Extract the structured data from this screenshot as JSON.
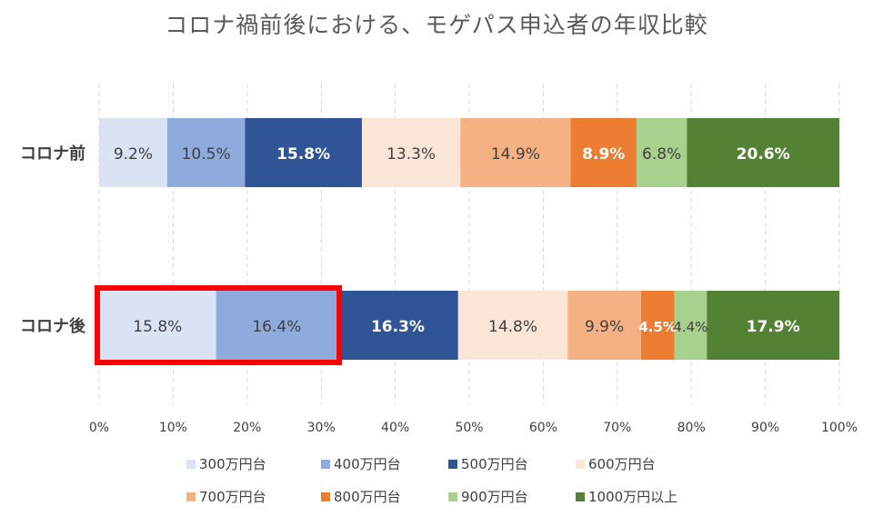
{
  "chart_data": {
    "type": "bar",
    "orientation": "horizontal",
    "stacked": "percent",
    "title": "コロナ禍前後における、モゲパス申込者の年収比較",
    "categories": [
      "コロナ前",
      "コロナ後"
    ],
    "series": [
      {
        "name": "300万円台",
        "color": "#dae3f3",
        "values": [
          9.2,
          15.8
        ],
        "labels": [
          "9.2%",
          "15.8%"
        ]
      },
      {
        "name": "400万円台",
        "color": "#8faadc",
        "values": [
          10.5,
          16.4
        ],
        "labels": [
          "10.5%",
          "16.4%"
        ]
      },
      {
        "name": "500万円台",
        "color": "#2f5597",
        "values": [
          15.8,
          16.3
        ],
        "labels": [
          "15.8%",
          "16.3%"
        ]
      },
      {
        "name": "600万円台",
        "color": "#fbe5d6",
        "values": [
          13.3,
          14.8
        ],
        "labels": [
          "13.3%",
          "14.8%"
        ]
      },
      {
        "name": "700万円台",
        "color": "#f4b183",
        "values": [
          14.9,
          9.9
        ],
        "labels": [
          "14.9%",
          "9.9%"
        ]
      },
      {
        "name": "800万円台",
        "color": "#ed7d31",
        "values": [
          8.9,
          4.5
        ],
        "labels": [
          "8.9%",
          "4.5%"
        ]
      },
      {
        "name": "900万円台",
        "color": "#a9d18e",
        "values": [
          6.8,
          4.4
        ],
        "labels": [
          "6.8%",
          "4.4%"
        ]
      },
      {
        "name": "1000万円以上",
        "color": "#548235",
        "values": [
          20.6,
          17.9
        ],
        "labels": [
          "20.6%",
          "17.9%"
        ]
      }
    ],
    "xlim": [
      0,
      100
    ],
    "x_ticks": [
      "0%",
      "10%",
      "20%",
      "30%",
      "40%",
      "50%",
      "60%",
      "70%",
      "80%",
      "90%",
      "100%"
    ],
    "grid": "vertical-dashed",
    "legend": "bottom",
    "highlight": {
      "category": "コロナ後",
      "series": [
        "300万円台",
        "400万円台"
      ],
      "color": "#ff0000"
    }
  }
}
